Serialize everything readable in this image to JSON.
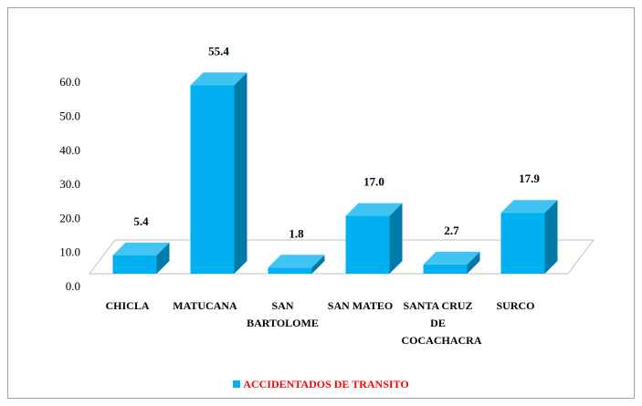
{
  "chart_data": {
    "type": "bar3d",
    "categories": [
      "CHICLA",
      "MATUCANA",
      "SAN BARTOLOME",
      "SAN MATEO",
      "SANTA CRUZ DE COCACHACRA",
      "SURCO"
    ],
    "series": [
      {
        "name": "ACCIDENTADOS DE TRANSITO",
        "color": "#00b0f0",
        "values": [
          5.4,
          55.4,
          1.8,
          17.0,
          2.7,
          17.9
        ],
        "value_labels": [
          "5.4",
          "55.4",
          "1.8",
          "17.0",
          "2.7",
          "17.9"
        ]
      }
    ],
    "ylim": [
      0,
      60
    ],
    "yticks": [
      {
        "value": 0,
        "label": "0.0"
      },
      {
        "value": 10,
        "label": "10.0"
      },
      {
        "value": 20,
        "label": "20.0"
      },
      {
        "value": 30,
        "label": "30.0"
      },
      {
        "value": 40,
        "label": "40.0"
      },
      {
        "value": 50,
        "label": "50.0"
      },
      {
        "value": 60,
        "label": "60.0"
      }
    ],
    "legend_position": "bottom"
  }
}
